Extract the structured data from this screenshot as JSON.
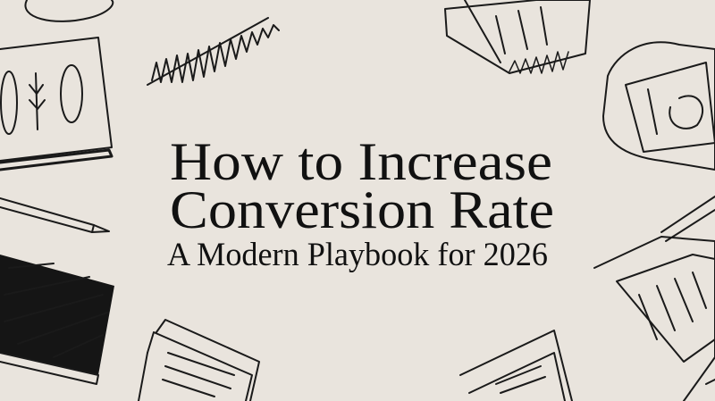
{
  "hero": {
    "title_line1": "How to Increase",
    "title_line2": "Conversion Rate",
    "subtitle": "A Modern Playbook for 2026"
  },
  "colors": {
    "background": "#e9e4dd",
    "ink": "#111111"
  }
}
